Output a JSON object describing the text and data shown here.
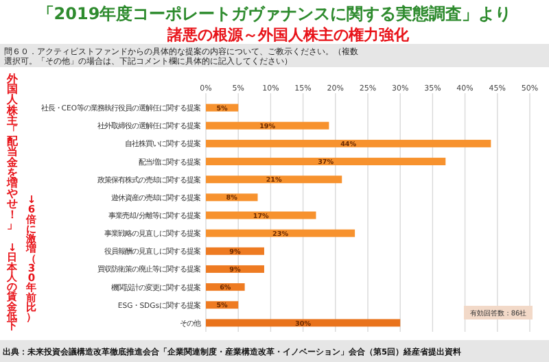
{
  "chart_data": {
    "type": "bar",
    "orientation": "horizontal",
    "title": "「2019年度コーポレートガヴァナンスに関する実態調査」より",
    "subtitle": "諸悪の根源～外国人株主の権力強化",
    "annotations": [
      "問６０．アクティビストファンドからの具体的な提案の内容について、ご教示ください。（複数選択可。「その他」の場合は、下記コメント欄に具体的に記入してください）",
      "外国人株主「配当金を増やせ！」",
      "↓日本人の賃金低下",
      "↓6倍に激増（30年前比）",
      "有効回答数：86社",
      "出典：未来投資会議構造改革徹底推進会合「企業関連制度・産業構造改革・イノベーション」会合（第5回）経産省提出資料"
    ],
    "categories": [
      "社長・CEO等の業務執行役員の選解任に関する提案",
      "社外取締役の選解任に関する提案",
      "自社株買いに関する提案",
      "配当増に関する提案",
      "政策保有株式の売却に関する提案",
      "遊休資産の売却に関する提案",
      "事業売却/分離等に関する提案",
      "事業戦略の見直しに関する提案",
      "役員報酬の見直しに関する提案",
      "買収防衛策の廃止等に関する提案",
      "機関設計の変更に関する提案",
      "ESG・SDGsに関する提案",
      "その他"
    ],
    "values": [
      5,
      19,
      44,
      37,
      21,
      8,
      17,
      23,
      9,
      9,
      6,
      5,
      30
    ],
    "value_labels": [
      "5%",
      "19%",
      "44%",
      "37%",
      "21%",
      "8%",
      "17%",
      "23%",
      "9%",
      "9%",
      "6%",
      "5%",
      "30%"
    ],
    "colors": [
      "#f7922e",
      "#f7922e",
      "#f7922e",
      "#f7922e",
      "#f7922e",
      "#f7922e",
      "#f7922e",
      "#f7922e",
      "#ee7b22",
      "#ee7b22",
      "#ee7b22",
      "#ee7b22",
      "#e9731c"
    ],
    "xlim": [
      0,
      50
    ],
    "xticks": [
      {
        "value": 0,
        "label": "0%"
      },
      {
        "value": 5,
        "label": "5%"
      },
      {
        "value": 10,
        "label": "10%"
      },
      {
        "value": 15,
        "label": "15%"
      },
      {
        "value": 20,
        "label": "20%"
      },
      {
        "value": 25,
        "label": "25%"
      },
      {
        "value": 30,
        "label": "30%"
      },
      {
        "value": 35,
        "label": "35%"
      },
      {
        "value": 40,
        "label": "40%"
      },
      {
        "value": 45,
        "label": "45%"
      },
      {
        "value": 50,
        "label": "50%"
      }
    ],
    "grid": "x"
  }
}
